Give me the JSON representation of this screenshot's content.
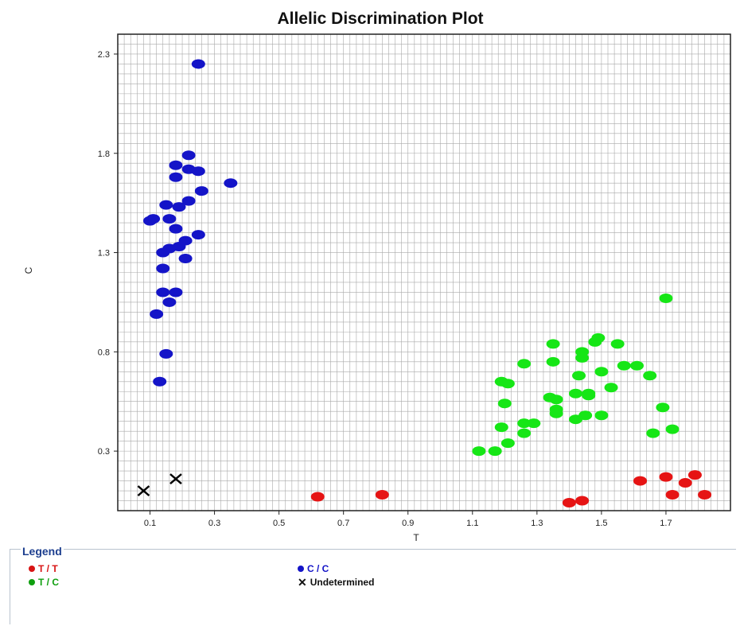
{
  "chart_data": {
    "type": "scatter",
    "title": "Allelic Discrimination Plot",
    "xlabel": "T",
    "ylabel": "C",
    "xlim": [
      0.0,
      1.9
    ],
    "ylim": [
      0.0,
      2.4
    ],
    "xticks": [
      "0.1",
      "0.3",
      "0.5",
      "0.7",
      "0.9",
      "1.1",
      "1.3",
      "1.5",
      "1.7"
    ],
    "xtick_values": [
      0.1,
      0.3,
      0.5,
      0.7,
      0.9,
      1.1,
      1.3,
      1.5,
      1.7
    ],
    "yticks": [
      "0.3",
      "0.8",
      "1.3",
      "1.8",
      "2.3"
    ],
    "ytick_values": [
      0.3,
      0.8,
      1.3,
      1.8,
      2.3
    ],
    "grid": true,
    "legend_position": "bottom",
    "series": [
      {
        "name": "C / C",
        "color": "#1414c8",
        "marker": "dot",
        "points": [
          [
            0.25,
            2.25
          ],
          [
            0.22,
            1.79
          ],
          [
            0.18,
            1.74
          ],
          [
            0.22,
            1.72
          ],
          [
            0.25,
            1.71
          ],
          [
            0.18,
            1.68
          ],
          [
            0.35,
            1.65
          ],
          [
            0.26,
            1.61
          ],
          [
            0.22,
            1.56
          ],
          [
            0.15,
            1.54
          ],
          [
            0.19,
            1.53
          ],
          [
            0.11,
            1.47
          ],
          [
            0.1,
            1.46
          ],
          [
            0.16,
            1.47
          ],
          [
            0.18,
            1.42
          ],
          [
            0.25,
            1.39
          ],
          [
            0.21,
            1.36
          ],
          [
            0.19,
            1.33
          ],
          [
            0.16,
            1.32
          ],
          [
            0.14,
            1.3
          ],
          [
            0.21,
            1.27
          ],
          [
            0.14,
            1.22
          ],
          [
            0.14,
            1.1
          ],
          [
            0.18,
            1.1
          ],
          [
            0.16,
            1.05
          ],
          [
            0.12,
            0.99
          ],
          [
            0.15,
            0.79
          ],
          [
            0.13,
            0.65
          ]
        ]
      },
      {
        "name": "T / C",
        "color": "#16e616",
        "marker": "dot",
        "points": [
          [
            1.7,
            1.07
          ],
          [
            1.49,
            0.87
          ],
          [
            1.48,
            0.85
          ],
          [
            1.35,
            0.84
          ],
          [
            1.55,
            0.84
          ],
          [
            1.44,
            0.8
          ],
          [
            1.44,
            0.77
          ],
          [
            1.26,
            0.74
          ],
          [
            1.35,
            0.75
          ],
          [
            1.57,
            0.73
          ],
          [
            1.61,
            0.73
          ],
          [
            1.5,
            0.7
          ],
          [
            1.43,
            0.68
          ],
          [
            1.65,
            0.68
          ],
          [
            1.19,
            0.65
          ],
          [
            1.21,
            0.64
          ],
          [
            1.53,
            0.62
          ],
          [
            1.42,
            0.59
          ],
          [
            1.46,
            0.59
          ],
          [
            1.46,
            0.58
          ],
          [
            1.34,
            0.57
          ],
          [
            1.36,
            0.56
          ],
          [
            1.2,
            0.54
          ],
          [
            1.36,
            0.51
          ],
          [
            1.36,
            0.49
          ],
          [
            1.69,
            0.52
          ],
          [
            1.45,
            0.48
          ],
          [
            1.5,
            0.48
          ],
          [
            1.42,
            0.46
          ],
          [
            1.26,
            0.44
          ],
          [
            1.29,
            0.44
          ],
          [
            1.19,
            0.42
          ],
          [
            1.72,
            0.41
          ],
          [
            1.26,
            0.39
          ],
          [
            1.66,
            0.39
          ],
          [
            1.21,
            0.34
          ],
          [
            1.12,
            0.3
          ],
          [
            1.17,
            0.3
          ]
        ]
      },
      {
        "name": "T / T",
        "color": "#e61414",
        "marker": "dot",
        "points": [
          [
            1.62,
            0.15
          ],
          [
            1.7,
            0.17
          ],
          [
            1.79,
            0.18
          ],
          [
            1.76,
            0.14
          ],
          [
            1.72,
            0.08
          ],
          [
            1.82,
            0.08
          ],
          [
            0.62,
            0.07
          ],
          [
            0.82,
            0.08
          ],
          [
            1.4,
            0.04
          ],
          [
            1.44,
            0.05
          ]
        ]
      },
      {
        "name": "Undetermined",
        "color": "#000000",
        "marker": "x",
        "points": [
          [
            0.08,
            0.1
          ],
          [
            0.18,
            0.16
          ]
        ]
      }
    ]
  },
  "legend": {
    "title": "Legend",
    "items": [
      {
        "label": "T / T",
        "color": "#d81414",
        "marker": "dot"
      },
      {
        "label": "C / C",
        "color": "#1414c8",
        "marker": "dot"
      },
      {
        "label": "T / C",
        "color": "#0f9f0f",
        "marker": "dot"
      },
      {
        "label": "Undetermined",
        "color": "#111111",
        "marker": "x"
      }
    ]
  }
}
